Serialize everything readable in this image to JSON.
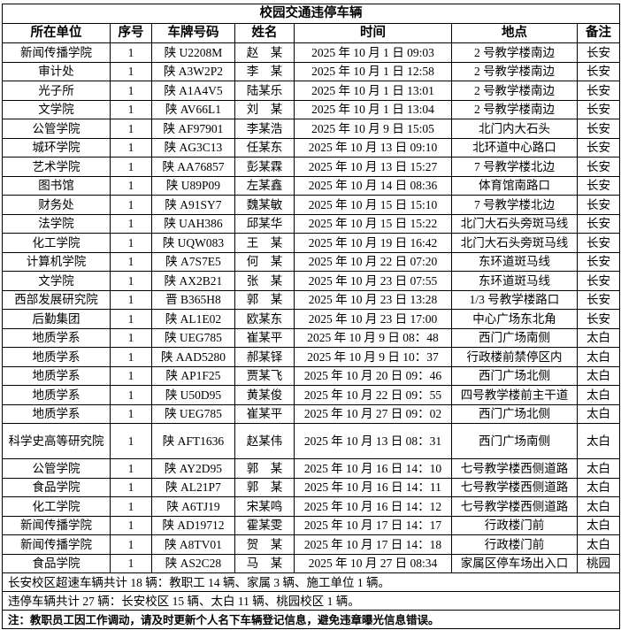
{
  "title": "校园交通违停车辆",
  "headers": [
    "所在单位",
    "序号",
    "车牌号码",
    "姓名",
    "时间",
    "地点",
    "备注"
  ],
  "rows": [
    [
      "新闻传播学院",
      "1",
      "陕 U2208M",
      "赵　某",
      "2025 年 10 月 1 日 09:03",
      "2 号教学楼南边",
      "长安"
    ],
    [
      "审计处",
      "1",
      "陕 A3W2P2",
      "李　某",
      "2025 年 10 月 1 日 12:58",
      "2 号教学楼南边",
      "长安"
    ],
    [
      "光子所",
      "1",
      "陕 A1A4V5",
      "陆某乐",
      "2025 年 10 月 1 日 13:01",
      "2 号教学楼南边",
      "长安"
    ],
    [
      "文学院",
      "1",
      "陕 AV66L1",
      "刘　某",
      "2025 年 10 月 1 日 13:04",
      "2 号教学楼南边",
      "长安"
    ],
    [
      "公管学院",
      "1",
      "陕 AF97901",
      "李某浩",
      "2025 年 10 月 9 日 15:05",
      "北门内大石头",
      "长安"
    ],
    [
      "城环学院",
      "1",
      "陕 AG3C13",
      "任某东",
      "2025 年 10 月 13 日 09:10",
      "北环道中心路口",
      "长安"
    ],
    [
      "艺术学院",
      "1",
      "陕 AA76857",
      "彭某霖",
      "2025 年 10 月 13 日 15:27",
      "7 号教学楼北边",
      "长安"
    ],
    [
      "图书馆",
      "1",
      "陕 U89P09",
      "左某鑫",
      "2025 年 10 月 14 日 08:36",
      "体育馆南路口",
      "长安"
    ],
    [
      "财务处",
      "1",
      "陕 A91SY7",
      "魏某敏",
      "2025 年 10 月 15 日 15:10",
      "7 号教学楼北边",
      "长安"
    ],
    [
      "法学院",
      "1",
      "陕 UAH386",
      "邱某华",
      "2025 年 10 月 15 日 15:22",
      "北门大石头旁斑马线",
      "长安"
    ],
    [
      "化工学院",
      "1",
      "陕 UQW083",
      "王　某",
      "2025 年 10 月 19 日 16:42",
      "北门大石头旁斑马线",
      "长安"
    ],
    [
      "计算机学院",
      "1",
      "陕 A7S7E5",
      "何　某",
      "2025 年 10 月 22 日 07:20",
      "东环道斑马线",
      "长安"
    ],
    [
      "文学院",
      "1",
      "陕 AX2B21",
      "张　某",
      "2025 年 10 月 23 日 07:55",
      "东环道斑马线",
      "长安"
    ],
    [
      "西部发展研究院",
      "1",
      "晋 B365H8",
      "郭　某",
      "2025 年 10 月 23 日 13:28",
      "1/3 号教学楼路口",
      "长安"
    ],
    [
      "后勤集团",
      "1",
      "陕 AL1E02",
      "欧某东",
      "2025 年 10 月 23 日 17:00",
      "中心广场东北角",
      "长安"
    ],
    [
      "地质学系",
      "1",
      "陕 UEG785",
      "崔某平",
      "2025 年 10 月 9 日 08：48",
      "西门广场南侧",
      "太白"
    ],
    [
      "地质学系",
      "1",
      "陕 AAD5280",
      "郝某铎",
      "2025 年 10 月 9 日 10：37",
      "行政楼前禁停区内",
      "太白"
    ],
    [
      "地质学系",
      "1",
      "陕 AP1F25",
      "贾某飞",
      "2025 年 10 月 20 日 09：46",
      "西门广场北侧",
      "太白"
    ],
    [
      "地质学系",
      "1",
      "陕 U50D95",
      "黄某俊",
      "2025 年 10 月 22 日 09：55",
      "四号教学楼前主干道",
      "太白"
    ],
    [
      "地质学系",
      "1",
      "陕 UEG785",
      "崔某平",
      "2025 年 10 月 27 日 09：02",
      "西门广场北侧",
      "太白"
    ],
    [
      "科学史高等研究院",
      "1",
      "陕 AFT1636",
      "赵某伟",
      "2025 年 10 月 13 日 08：31",
      "西门广场南侧",
      "太白"
    ],
    [
      "公管学院",
      "1",
      "陕 AY2D95",
      "郭　某",
      "2025 年 10 月 16 日 14：10",
      "七号教学楼西侧道路",
      "太白"
    ],
    [
      "食品学院",
      "1",
      "陕 AL21P7",
      "郭　某",
      "2025 年 10 月 16 日 14：11",
      "七号教学楼西侧道路",
      "太白"
    ],
    [
      "化工学院",
      "1",
      "陕 A6TJ19",
      "宋某鸣",
      "2025 年 10 月 16 日 14：12",
      "七号教学楼西侧道路",
      "太白"
    ],
    [
      "新闻传播学院",
      "1",
      "陕 AD19712",
      "霍某雯",
      "2025 年 10 月 17 日 14：17",
      "行政楼门前",
      "太白"
    ],
    [
      "新闻传播学院",
      "1",
      "陕 A8TV01",
      "贺　某",
      "2025 年 10 月 17 日 14：18",
      "行政楼门前",
      "太白"
    ],
    [
      "食品学院",
      "1",
      "陕 AS2C28",
      "马　某",
      "2025 年 10 月 27 日 08:34",
      "家属区停车场出入口",
      "桃园"
    ]
  ],
  "footer": [
    "长安校区超速车辆共计 18 辆：教职工 14 辆、家属 3 辆、施工单位 1 辆。",
    "违停车辆共计 27 辆：长安校区 15 辆、太白 11 辆、桃园校区 1 辆。"
  ],
  "note": "注：教职员工因工作调动，请及时更新个人名下车辆登记信息，避免违章曝光信息错误。"
}
